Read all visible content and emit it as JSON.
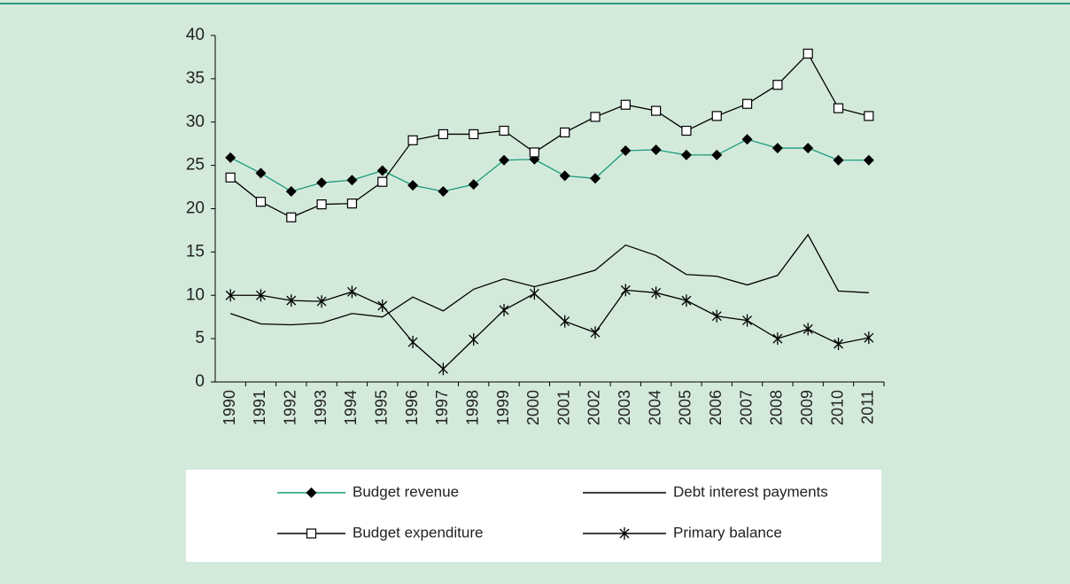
{
  "chart_data": {
    "type": "line",
    "categories": [
      "1990",
      "1991",
      "1992",
      "1993",
      "1994",
      "1995",
      "1996",
      "1997",
      "1998",
      "1999",
      "2000",
      "2001",
      "2002",
      "2003",
      "2004",
      "2005",
      "2006",
      "2007",
      "2008",
      "2009",
      "2010",
      "2011"
    ],
    "series": [
      {
        "name": "Budget revenue",
        "color": "#1a9a7a",
        "marker": "diamond",
        "values": [
          25.9,
          24.1,
          22,
          23,
          23.3,
          24.4,
          22.7,
          22,
          22.8,
          25.6,
          25.7,
          23.8,
          23.5,
          26.7,
          26.8,
          26.2,
          26.2,
          28,
          27,
          27,
          25.6,
          25.6
        ]
      },
      {
        "name": "Debt interest payments",
        "color": "#000000",
        "marker": "none",
        "values": [
          7.9,
          6.7,
          6.6,
          6.8,
          7.9,
          7.5,
          9.8,
          8.2,
          10.7,
          11.9,
          11,
          11.9,
          12.9,
          15.8,
          14.6,
          12.4,
          12.2,
          11.2,
          12.3,
          17,
          10.5,
          10.3
        ]
      },
      {
        "name": "Budget expenditure",
        "color": "#000000",
        "marker": "square",
        "values": [
          23.6,
          20.8,
          19,
          20.5,
          20.6,
          23.1,
          27.9,
          28.6,
          28.6,
          29,
          26.5,
          28.8,
          30.6,
          32,
          31.3,
          29,
          30.7,
          32.1,
          34.3,
          37.9,
          31.6,
          30.7
        ]
      },
      {
        "name": "Primary balance",
        "color": "#000000",
        "marker": "star",
        "values": [
          10,
          10,
          9.4,
          9.3,
          10.4,
          8.8,
          4.6,
          1.5,
          4.9,
          8.3,
          10.2,
          7,
          5.7,
          10.6,
          10.3,
          9.4,
          7.6,
          7.1,
          5,
          6.1,
          4.4,
          5.1
        ]
      }
    ],
    "marker_color": "#000000",
    "ylim": [
      0,
      40
    ],
    "yticks": [
      0,
      5,
      10,
      15,
      20,
      25,
      30,
      35,
      40
    ],
    "grid": false
  }
}
